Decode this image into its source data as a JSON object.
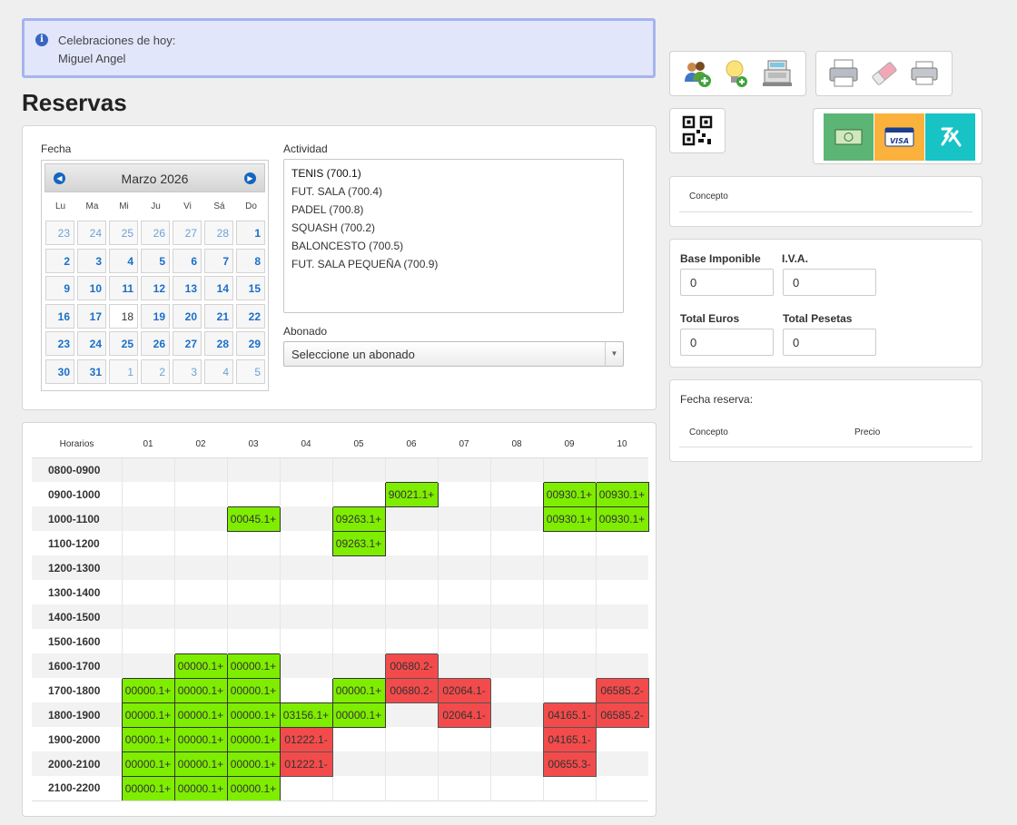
{
  "notice": {
    "title": "Celebraciones de hoy:",
    "name": "Miguel Angel"
  },
  "page_title": "Reservas",
  "fecha_label": "Fecha",
  "calendar": {
    "month": "Marzo 2026",
    "dow": [
      "Lu",
      "Ma",
      "Mi",
      "Ju",
      "Vi",
      "Sá",
      "Do"
    ],
    "weeks": [
      [
        "23",
        "24",
        "25",
        "26",
        "27",
        "28",
        "1"
      ],
      [
        "2",
        "3",
        "4",
        "5",
        "6",
        "7",
        "8"
      ],
      [
        "9",
        "10",
        "11",
        "12",
        "13",
        "14",
        "15"
      ],
      [
        "16",
        "17",
        "18",
        "19",
        "20",
        "21",
        "22"
      ],
      [
        "23",
        "24",
        "25",
        "26",
        "27",
        "28",
        "29"
      ],
      [
        "30",
        "31",
        "1",
        "2",
        "3",
        "4",
        "5"
      ]
    ],
    "today": "18"
  },
  "actividad_label": "Actividad",
  "activities": [
    "TENIS (700.1)",
    "FUT. SALA (700.4)",
    "PADEL (700.8)",
    "SQUASH (700.2)",
    "BALONCESTO (700.5)",
    "FUT. SALA PEQUEÑA (700.9)"
  ],
  "abonado_label": "Abonado",
  "abonado_placeholder": "Seleccione un abonado",
  "schedule": {
    "header": "Horarios",
    "columns": [
      "01",
      "02",
      "03",
      "04",
      "05",
      "06",
      "07",
      "08",
      "09",
      "10"
    ],
    "rows": [
      {
        "time": "0800-0900",
        "cells": [
          "",
          "",
          "",
          "",
          "",
          "",
          "",
          "",
          "",
          ""
        ]
      },
      {
        "time": "0900-1000",
        "cells": [
          "",
          "",
          "",
          "",
          "",
          "g:90021.1+",
          "",
          "",
          "g:00930.1+",
          "g:00930.1+"
        ]
      },
      {
        "time": "1000-1100",
        "cells": [
          "",
          "",
          "g:00045.1+",
          "",
          "g:09263.1+",
          "",
          "",
          "",
          "g:00930.1+",
          "g:00930.1+"
        ]
      },
      {
        "time": "1100-1200",
        "cells": [
          "",
          "",
          "",
          "",
          "g:09263.1+",
          "",
          "",
          "",
          "",
          ""
        ]
      },
      {
        "time": "1200-1300",
        "cells": [
          "",
          "",
          "",
          "",
          "",
          "",
          "",
          "",
          "",
          ""
        ]
      },
      {
        "time": "1300-1400",
        "cells": [
          "",
          "",
          "",
          "",
          "",
          "",
          "",
          "",
          "",
          ""
        ]
      },
      {
        "time": "1400-1500",
        "cells": [
          "",
          "",
          "",
          "",
          "",
          "",
          "",
          "",
          "",
          ""
        ]
      },
      {
        "time": "1500-1600",
        "cells": [
          "",
          "",
          "",
          "",
          "",
          "",
          "",
          "",
          "",
          ""
        ]
      },
      {
        "time": "1600-1700",
        "cells": [
          "",
          "g:00000.1+",
          "g:00000.1+",
          "",
          "",
          "r:00680.2-",
          "",
          "",
          "",
          ""
        ]
      },
      {
        "time": "1700-1800",
        "cells": [
          "g:00000.1+",
          "g:00000.1+",
          "g:00000.1+",
          "",
          "g:00000.1+",
          "r:00680.2-",
          "r:02064.1-",
          "",
          "",
          "r:06585.2-"
        ]
      },
      {
        "time": "1800-1900",
        "cells": [
          "g:00000.1+",
          "g:00000.1+",
          "g:00000.1+",
          "g:03156.1+",
          "g:00000.1+",
          "",
          "r:02064.1-",
          "",
          "r:04165.1-",
          "r:06585.2-"
        ]
      },
      {
        "time": "1900-2000",
        "cells": [
          "g:00000.1+",
          "g:00000.1+",
          "g:00000.1+",
          "r:01222.1-",
          "",
          "",
          "",
          "",
          "r:04165.1-",
          ""
        ]
      },
      {
        "time": "2000-2100",
        "cells": [
          "g:00000.1+",
          "g:00000.1+",
          "g:00000.1+",
          "r:01222.1-",
          "",
          "",
          "",
          "",
          "r:00655.3-",
          ""
        ]
      },
      {
        "time": "2100-2200",
        "cells": [
          "g:00000.1+",
          "g:00000.1+",
          "g:00000.1+",
          "",
          "",
          "",
          "",
          "",
          "",
          ""
        ]
      }
    ]
  },
  "concepto_label": "Concepto",
  "totals": {
    "base_label": "Base Imponible",
    "base_value": "0",
    "iva_label": "I.V.A.",
    "iva_value": "0",
    "euros_label": "Total Euros",
    "euros_value": "0",
    "pesetas_label": "Total Pesetas",
    "pesetas_value": "0"
  },
  "reserva": {
    "fecha_label": "Fecha reserva:",
    "concepto_label": "Concepto",
    "precio_label": "Precio"
  },
  "icons": [
    "add-users-icon",
    "idea-add-icon",
    "cash-register-icon",
    "printer-icon",
    "eraser-icon",
    "printer-small-icon",
    "qr-code-icon",
    "cash-icon",
    "visa-card-icon",
    "brand-icon"
  ],
  "colors": {
    "reserved_positive": "#7fed00",
    "reserved_negative": "#f34b4b",
    "cash": "#5cb574",
    "visa": "#fbb23c",
    "brand": "#17c3c5"
  }
}
